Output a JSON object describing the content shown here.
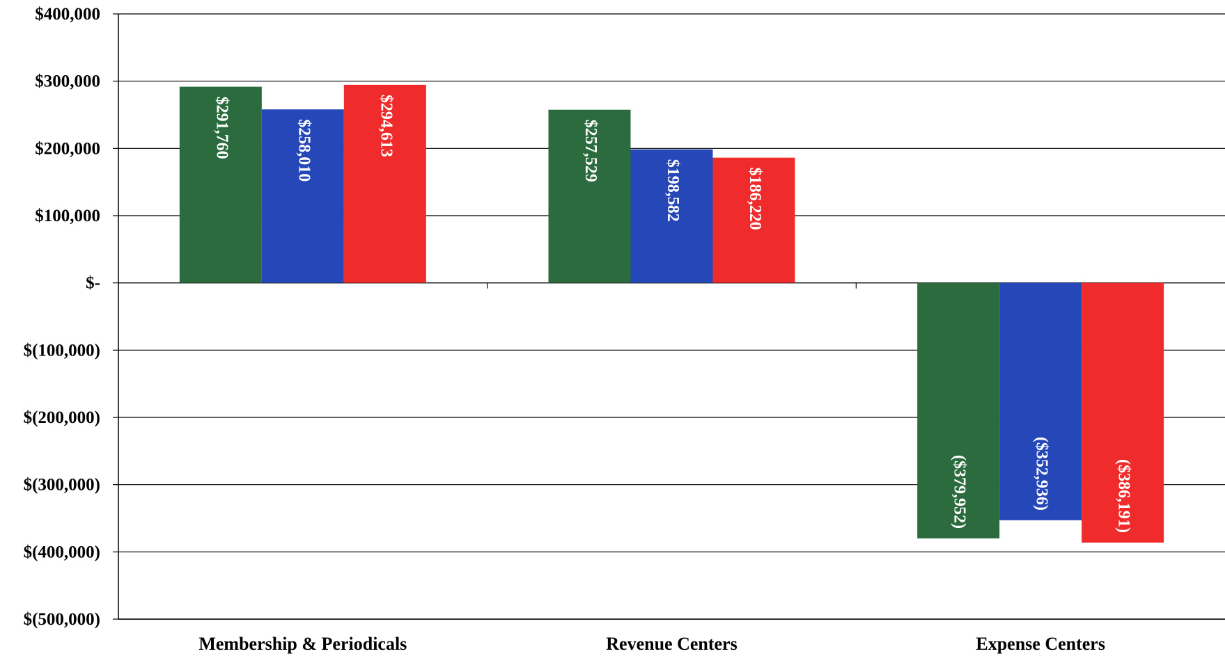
{
  "colors": {
    "series_1": "#2b6b3d",
    "series_2": "#2647b8",
    "series_3": "#ef2b2b",
    "label_on_dark": "#ffffff",
    "label_on_blue": "#ffffff",
    "grid": "#000000"
  },
  "chart_data": {
    "type": "bar",
    "title": "",
    "xlabel": "",
    "ylabel": "",
    "grid": true,
    "legend": "none",
    "ylim": [
      -500000,
      400000
    ],
    "yticks": [
      400000,
      300000,
      200000,
      100000,
      0,
      -100000,
      -200000,
      -300000,
      -400000,
      -500000
    ],
    "ytick_labels": [
      "$400,000",
      "$300,000",
      "$200,000",
      "$100,000",
      "$-",
      "$(100,000)",
      "$(200,000)",
      "$(300,000)",
      "$(400,000)",
      "$(500,000)"
    ],
    "categories": [
      "Membership & Periodicals",
      "Revenue Centers",
      "Expense Centers"
    ],
    "series": [
      {
        "values": [
          291760,
          257529,
          -379952
        ],
        "labels": [
          "$291,760",
          "$257,529",
          "($379,952)"
        ]
      },
      {
        "values": [
          258010,
          198582,
          -352936
        ],
        "labels": [
          "$258,010",
          "$198,582",
          "($352,936)"
        ]
      },
      {
        "values": [
          294613,
          186220,
          -386191
        ],
        "labels": [
          "$294,613",
          "$186,220",
          "($386,191)"
        ]
      }
    ]
  }
}
